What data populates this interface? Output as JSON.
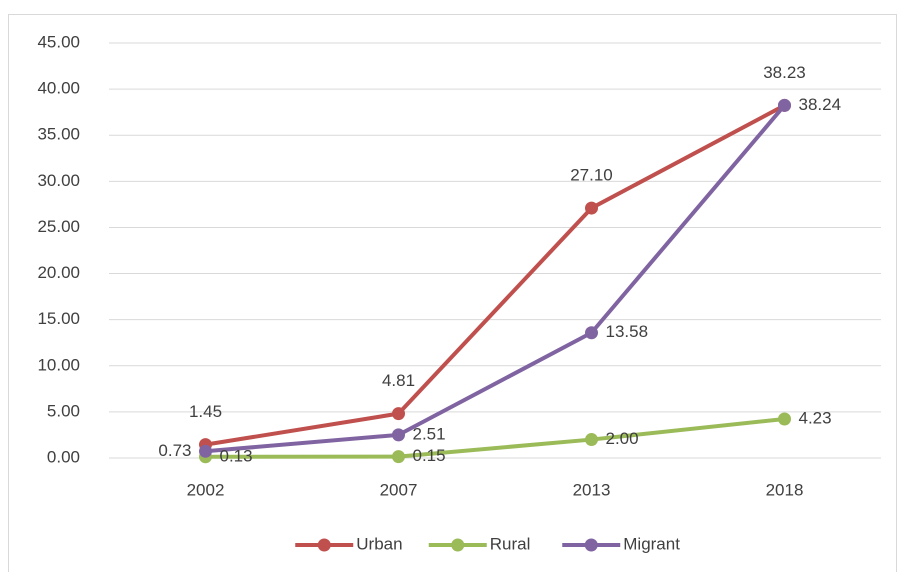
{
  "chart_data": {
    "type": "line",
    "categories": [
      "2002",
      "2007",
      "2013",
      "2018"
    ],
    "series": [
      {
        "name": "Urban",
        "color": "#c0504d",
        "values": [
          1.45,
          4.81,
          27.1,
          38.23
        ],
        "value_labels": [
          "1.45",
          "4.81",
          "27.10",
          "38.23"
        ]
      },
      {
        "name": "Rural",
        "color": "#9bbb59",
        "values": [
          0.13,
          0.15,
          2,
          4.23
        ],
        "value_labels": [
          "0.13",
          "0.15",
          "2.00",
          "4.23"
        ]
      },
      {
        "name": "Migrant",
        "color": "#8064a2",
        "values": [
          0.73,
          2.51,
          13.58,
          38.24
        ],
        "value_labels": [
          "0.73",
          "2.51",
          "13.58",
          "38.24"
        ]
      }
    ],
    "ylim": [
      0,
      45
    ],
    "yticks": [
      {
        "value": 0,
        "label": "0.00"
      },
      {
        "value": 5,
        "label": "5.00"
      },
      {
        "value": 10,
        "label": "10.00"
      },
      {
        "value": 15,
        "label": "15.00"
      },
      {
        "value": 20,
        "label": "20.00"
      },
      {
        "value": 25,
        "label": "25.00"
      },
      {
        "value": 30,
        "label": "30.00"
      },
      {
        "value": 35,
        "label": "35.00"
      },
      {
        "value": 40,
        "label": "40.00"
      },
      {
        "value": 45,
        "label": "45.00"
      }
    ],
    "grid": true,
    "legend": "bottom"
  }
}
